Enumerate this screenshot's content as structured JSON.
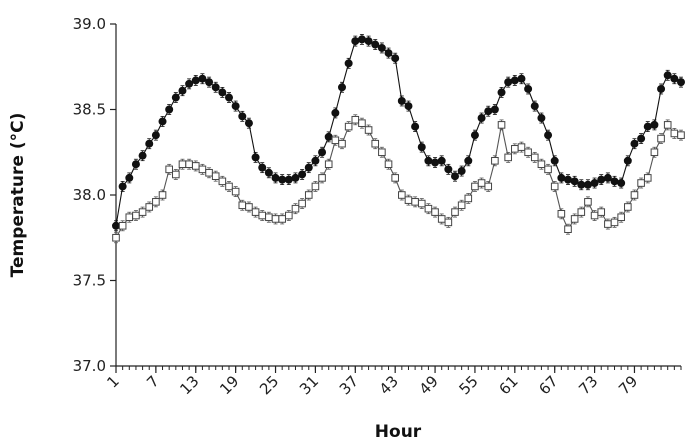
{
  "chart_data": {
    "type": "line",
    "title": "",
    "xlabel": "Hour",
    "ylabel": "Temperature (°C)",
    "xlim": [
      1,
      86
    ],
    "ylim": [
      37.0,
      39.0
    ],
    "x_tick_labels": [
      "1",
      "7",
      "13",
      "19",
      "25",
      "31",
      "37",
      "43",
      "49",
      "55",
      "61",
      "67",
      "73",
      "79"
    ],
    "y_tick_labels": [
      "37.0",
      "37.5",
      "38.0",
      "38.5",
      "39.0"
    ],
    "grid": false,
    "legend": "none",
    "series": [
      {
        "marker": "filled-circle",
        "color": "#111111",
        "x": [
          1,
          2,
          3,
          4,
          5,
          6,
          7,
          8,
          9,
          10,
          11,
          12,
          13,
          14,
          15,
          16,
          17,
          18,
          19,
          20,
          21,
          22,
          23,
          24,
          25,
          26,
          27,
          28,
          29,
          30,
          31,
          32,
          33,
          34,
          35,
          36,
          37,
          38,
          39,
          40,
          41,
          42,
          43,
          44,
          45,
          46,
          47,
          48,
          49,
          50,
          51,
          52,
          53,
          54,
          55,
          56,
          57,
          58,
          59,
          60,
          61,
          62,
          63,
          64,
          65,
          66,
          67,
          68,
          69,
          70,
          71,
          72,
          73,
          74,
          75,
          76,
          77,
          78,
          79,
          80,
          81,
          82,
          83,
          84,
          85,
          86
        ],
        "values": [
          37.82,
          38.05,
          38.1,
          38.18,
          38.23,
          38.3,
          38.35,
          38.43,
          38.5,
          38.57,
          38.61,
          38.65,
          38.67,
          38.68,
          38.66,
          38.63,
          38.6,
          38.57,
          38.52,
          38.46,
          38.42,
          38.22,
          38.16,
          38.13,
          38.1,
          38.09,
          38.09,
          38.1,
          38.12,
          38.16,
          38.2,
          38.25,
          38.34,
          38.48,
          38.63,
          38.77,
          38.9,
          38.91,
          38.9,
          38.88,
          38.86,
          38.83,
          38.8,
          38.55,
          38.52,
          38.4,
          38.28,
          38.2,
          38.19,
          38.2,
          38.15,
          38.11,
          38.14,
          38.2,
          38.35,
          38.45,
          38.49,
          38.5,
          38.6,
          38.66,
          38.67,
          38.68,
          38.62,
          38.52,
          38.45,
          38.35,
          38.2,
          38.1,
          38.09,
          38.08,
          38.06,
          38.06,
          38.07,
          38.09,
          38.1,
          38.08,
          38.07,
          38.2,
          38.3,
          38.33,
          38.4,
          38.41,
          38.62,
          38.7,
          38.68,
          38.66
        ]
      },
      {
        "marker": "open-square",
        "color": "#555555",
        "x": [
          1,
          2,
          3,
          4,
          5,
          6,
          7,
          8,
          9,
          10,
          11,
          12,
          13,
          14,
          15,
          16,
          17,
          18,
          19,
          20,
          21,
          22,
          23,
          24,
          25,
          26,
          27,
          28,
          29,
          30,
          31,
          32,
          33,
          34,
          35,
          36,
          37,
          38,
          39,
          40,
          41,
          42,
          43,
          44,
          45,
          46,
          47,
          48,
          49,
          50,
          51,
          52,
          53,
          54,
          55,
          56,
          57,
          58,
          59,
          60,
          61,
          62,
          63,
          64,
          65,
          66,
          67,
          68,
          69,
          70,
          71,
          72,
          73,
          74,
          75,
          76,
          77,
          78,
          79,
          80,
          81,
          82,
          83,
          84,
          85,
          86
        ],
        "values": [
          37.75,
          37.82,
          37.87,
          37.88,
          37.9,
          37.93,
          37.96,
          38.0,
          38.15,
          38.12,
          38.18,
          38.18,
          38.17,
          38.15,
          38.13,
          38.11,
          38.08,
          38.05,
          38.02,
          37.94,
          37.93,
          37.9,
          37.88,
          37.87,
          37.86,
          37.86,
          37.88,
          37.92,
          37.95,
          38.0,
          38.05,
          38.1,
          38.18,
          38.32,
          38.3,
          38.4,
          38.44,
          38.42,
          38.38,
          38.3,
          38.25,
          38.18,
          38.1,
          38.0,
          37.97,
          37.96,
          37.95,
          37.92,
          37.9,
          37.86,
          37.84,
          37.9,
          37.94,
          37.98,
          38.05,
          38.07,
          38.05,
          38.2,
          38.41,
          38.22,
          38.27,
          38.28,
          38.25,
          38.22,
          38.18,
          38.15,
          38.05,
          37.89,
          37.8,
          37.86,
          37.9,
          37.96,
          37.88,
          37.9,
          37.83,
          37.84,
          37.87,
          37.93,
          38.0,
          38.07,
          38.1,
          38.25,
          38.33,
          38.41,
          38.36,
          38.35
        ]
      }
    ]
  }
}
